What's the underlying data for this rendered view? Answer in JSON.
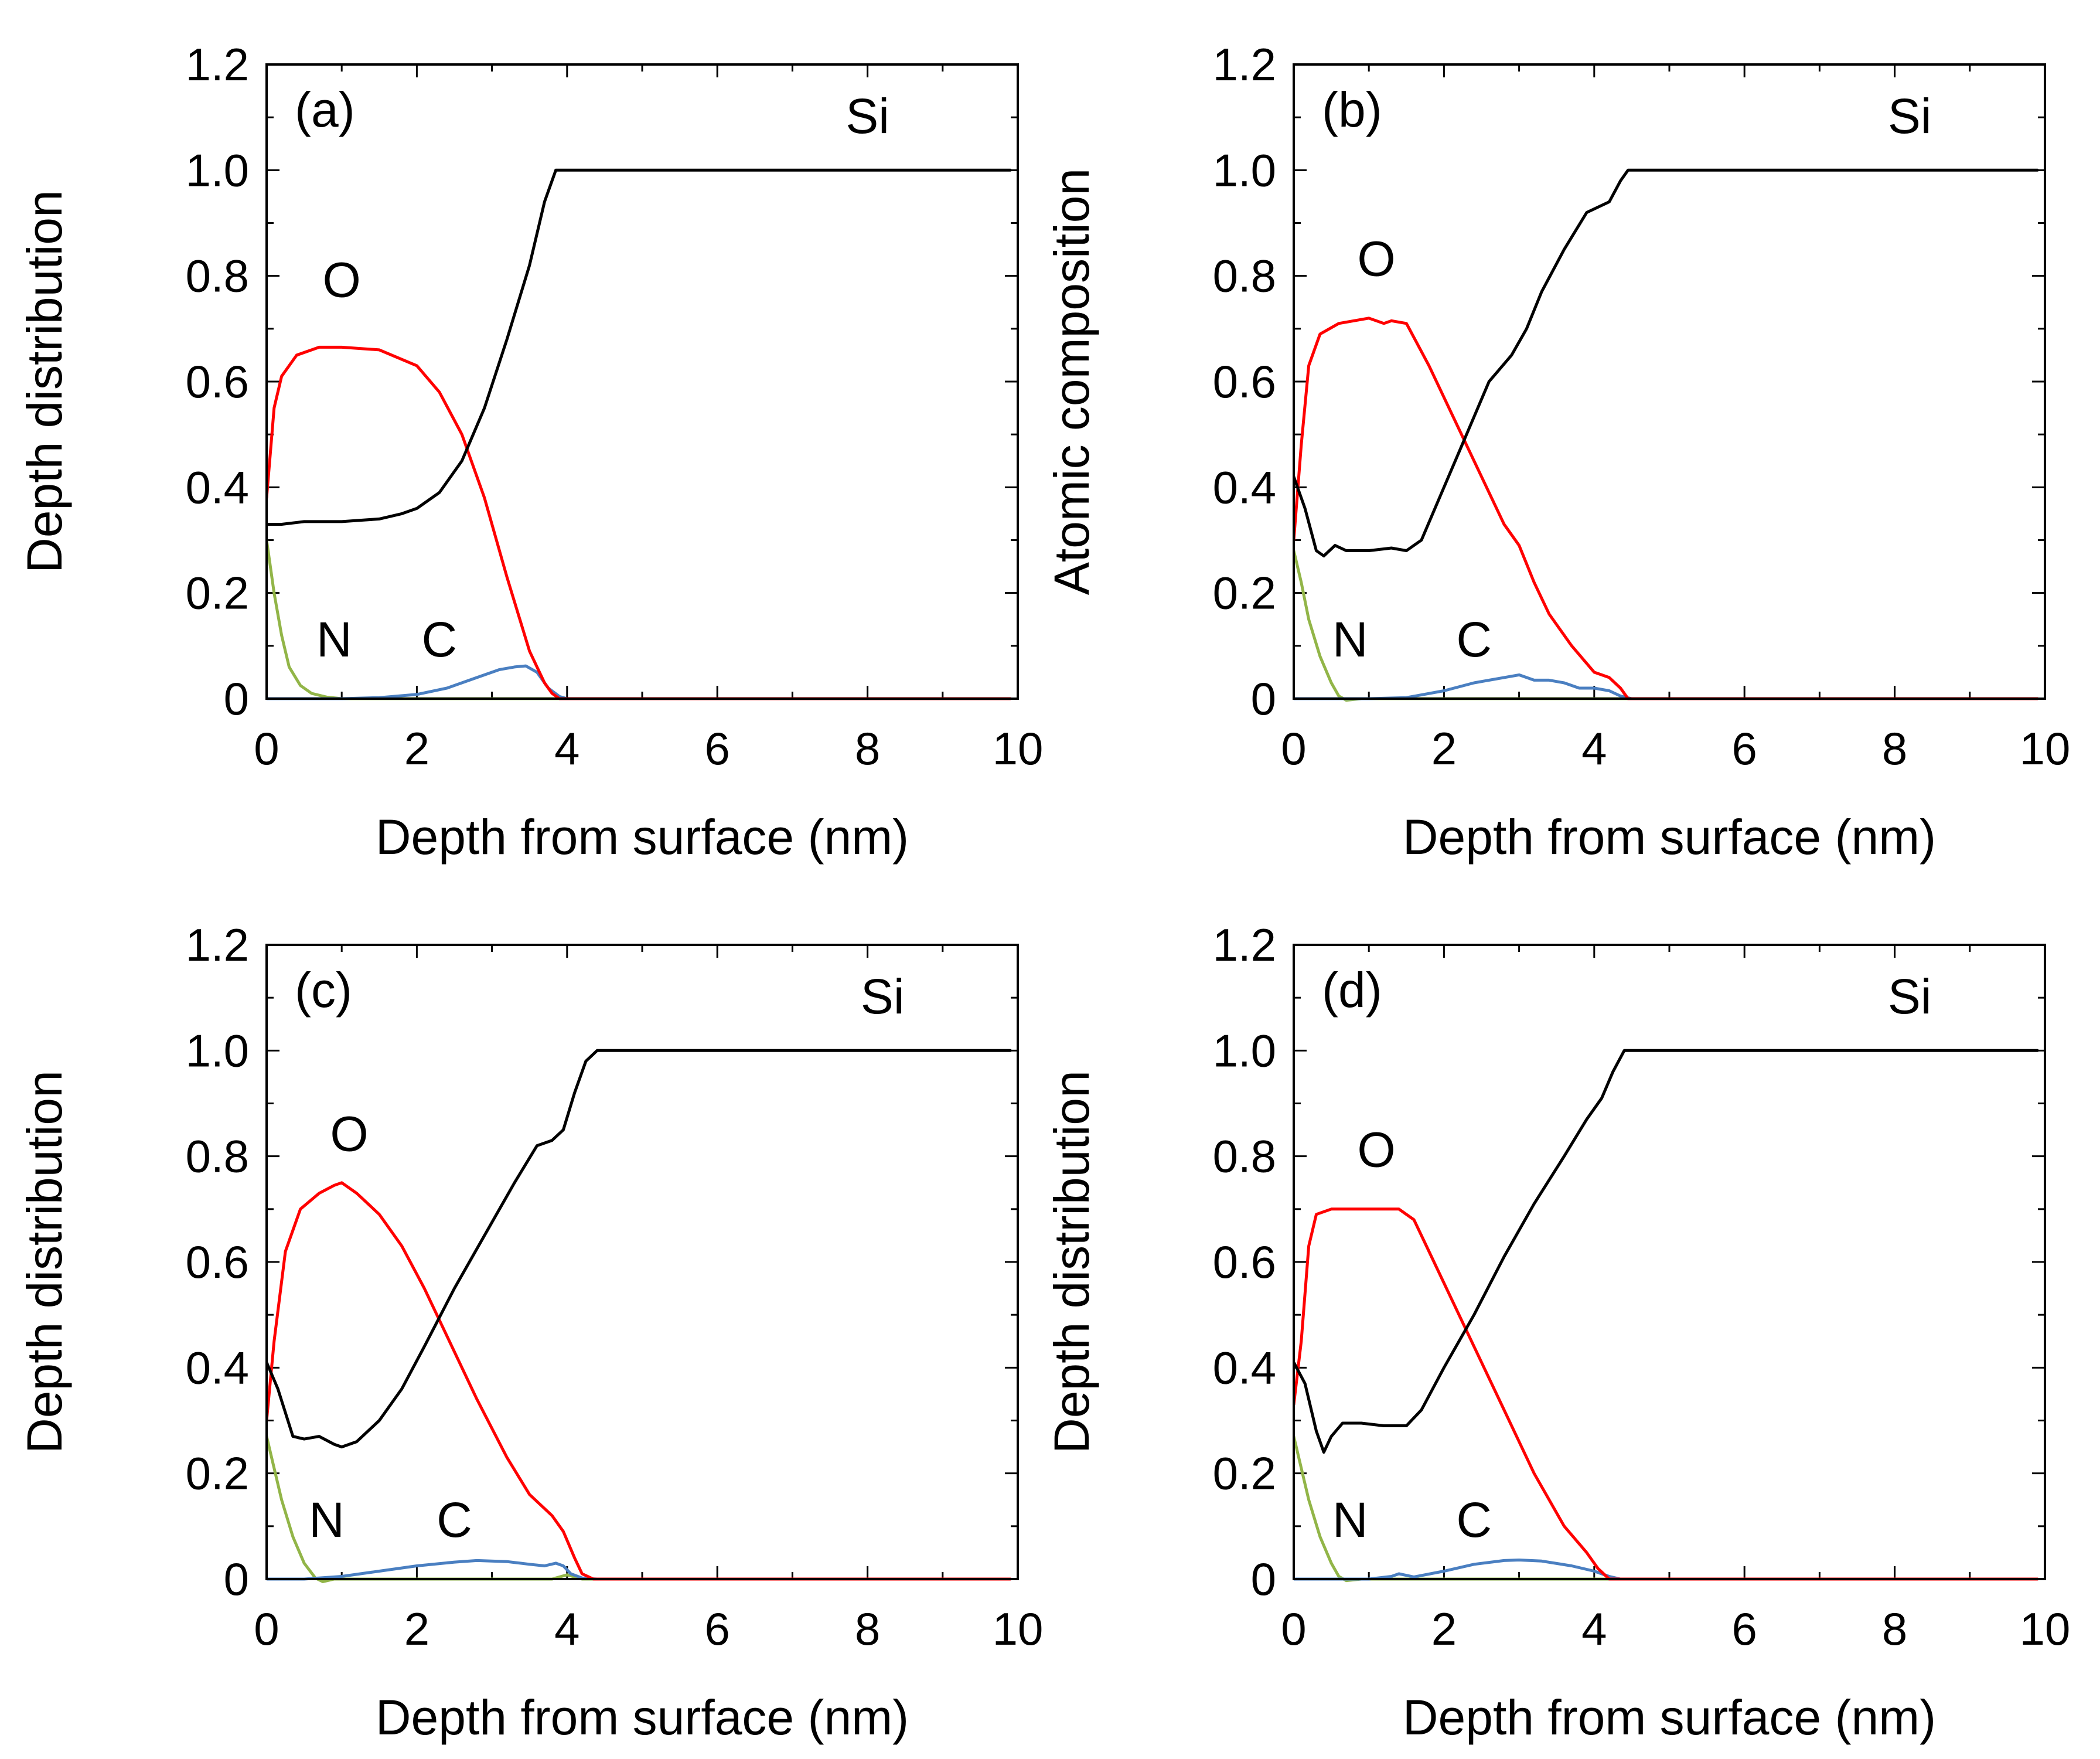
{
  "chart_data": [
    {
      "type": "line",
      "panel_label": "(a)",
      "xlabel": "Depth from surface (nm)",
      "ylabel": "Depth distribution",
      "xlim": [
        0,
        10
      ],
      "ylim": [
        0,
        1.2
      ],
      "xticks": [
        "0",
        "2",
        "4",
        "6",
        "8",
        "10"
      ],
      "yticks": [
        "0",
        "0.2",
        "0.4",
        "0.6",
        "0.8",
        "1.0",
        "1.2"
      ],
      "series": [
        {
          "name": "Si",
          "color": "#000000",
          "label_pos": [
            8.0,
            1.07
          ],
          "x": [
            0,
            0.2,
            0.5,
            1.0,
            1.5,
            1.8,
            2.0,
            2.3,
            2.6,
            2.9,
            3.2,
            3.5,
            3.7,
            3.85,
            4.0,
            6.0,
            8.0,
            9.9
          ],
          "y": [
            0.33,
            0.33,
            0.335,
            0.335,
            0.34,
            0.35,
            0.36,
            0.39,
            0.45,
            0.55,
            0.68,
            0.82,
            0.94,
            1.0,
            1.0,
            1.0,
            1.0,
            1.0
          ]
        },
        {
          "name": "O",
          "color": "#ff0000",
          "label_pos": [
            1.0,
            0.76
          ],
          "x": [
            0,
            0.1,
            0.2,
            0.4,
            0.7,
            1.0,
            1.5,
            2.0,
            2.3,
            2.6,
            2.9,
            3.2,
            3.5,
            3.7,
            3.8,
            3.9,
            4.0,
            6.0,
            8.0,
            9.9
          ],
          "y": [
            0.38,
            0.55,
            0.61,
            0.65,
            0.665,
            0.665,
            0.66,
            0.63,
            0.58,
            0.5,
            0.38,
            0.23,
            0.09,
            0.03,
            0.01,
            0.0,
            0.0,
            0.0,
            0.0,
            0.0
          ]
        },
        {
          "name": "N",
          "color": "#92b548",
          "label_pos": [
            0.9,
            0.08
          ],
          "x": [
            0,
            0.1,
            0.2,
            0.3,
            0.45,
            0.6,
            0.8,
            1.0,
            1.2,
            2.0,
            4.0,
            6.0,
            8.0,
            9.9
          ],
          "y": [
            0.3,
            0.2,
            0.12,
            0.06,
            0.025,
            0.01,
            0.003,
            0.0,
            0.0,
            0.0,
            0.0,
            0.0,
            0.0,
            0.0
          ]
        },
        {
          "name": "C",
          "color": "#4a7fc1",
          "label_pos": [
            2.3,
            0.08
          ],
          "x": [
            0,
            0.5,
            1.0,
            1.5,
            2.0,
            2.4,
            2.8,
            3.1,
            3.3,
            3.45,
            3.6,
            3.75,
            3.9,
            4.0,
            6.0,
            8.0,
            9.9
          ],
          "y": [
            0.0,
            0.0,
            0.0,
            0.002,
            0.008,
            0.02,
            0.04,
            0.055,
            0.06,
            0.062,
            0.05,
            0.02,
            0.004,
            0.0,
            0.0,
            0.0,
            0.0
          ]
        }
      ]
    },
    {
      "type": "line",
      "panel_label": "(b)",
      "xlabel": "Depth from surface (nm)",
      "ylabel": "Atomic composition",
      "xlim": [
        0,
        10
      ],
      "ylim": [
        0,
        1.2
      ],
      "xticks": [
        "0",
        "2",
        "4",
        "6",
        "8",
        "10"
      ],
      "yticks": [
        "0",
        "0.2",
        "0.4",
        "0.6",
        "0.8",
        "1.0",
        "1.2"
      ],
      "series": [
        {
          "name": "Si",
          "color": "#000000",
          "label_pos": [
            8.2,
            1.07
          ],
          "x": [
            0,
            0.15,
            0.3,
            0.4,
            0.55,
            0.7,
            1.0,
            1.3,
            1.5,
            1.7,
            2.0,
            2.3,
            2.6,
            2.9,
            3.1,
            3.3,
            3.6,
            3.9,
            4.2,
            4.35,
            4.45,
            4.6,
            6.0,
            8.0,
            9.9
          ],
          "y": [
            0.42,
            0.36,
            0.28,
            0.27,
            0.29,
            0.28,
            0.28,
            0.285,
            0.28,
            0.3,
            0.4,
            0.5,
            0.6,
            0.65,
            0.7,
            0.77,
            0.85,
            0.92,
            0.94,
            0.98,
            1.0,
            1.0,
            1.0,
            1.0,
            1.0
          ]
        },
        {
          "name": "O",
          "color": "#ff0000",
          "label_pos": [
            1.1,
            0.8
          ],
          "x": [
            0,
            0.1,
            0.2,
            0.35,
            0.6,
            1.0,
            1.2,
            1.3,
            1.5,
            1.8,
            2.1,
            2.4,
            2.6,
            2.8,
            3.0,
            3.2,
            3.4,
            3.7,
            4.0,
            4.2,
            4.35,
            4.45,
            4.6,
            6.0,
            8.0,
            9.9
          ],
          "y": [
            0.3,
            0.48,
            0.63,
            0.69,
            0.71,
            0.72,
            0.71,
            0.715,
            0.71,
            0.63,
            0.54,
            0.45,
            0.39,
            0.33,
            0.29,
            0.22,
            0.16,
            0.1,
            0.05,
            0.04,
            0.02,
            0.0,
            0.0,
            0.0,
            0.0,
            0.0
          ]
        },
        {
          "name": "N",
          "color": "#92b548",
          "label_pos": [
            0.75,
            0.08
          ],
          "x": [
            0,
            0.1,
            0.2,
            0.35,
            0.5,
            0.6,
            0.7,
            0.9,
            1.5,
            2.0,
            4.0,
            6.0,
            8.0,
            9.9
          ],
          "y": [
            0.28,
            0.22,
            0.15,
            0.08,
            0.03,
            0.005,
            -0.003,
            0.0,
            0.0,
            0.0,
            0.0,
            0.0,
            0.0,
            0.0
          ]
        },
        {
          "name": "C",
          "color": "#4a7fc1",
          "label_pos": [
            2.4,
            0.08
          ],
          "x": [
            0,
            1.0,
            1.5,
            2.0,
            2.4,
            2.8,
            3.0,
            3.2,
            3.4,
            3.6,
            3.8,
            4.0,
            4.2,
            4.35,
            4.5,
            6.0,
            8.0,
            9.9
          ],
          "y": [
            0.0,
            0.0,
            0.002,
            0.015,
            0.03,
            0.04,
            0.045,
            0.035,
            0.035,
            0.03,
            0.02,
            0.02,
            0.015,
            0.005,
            0.0,
            0.0,
            0.0,
            0.0
          ]
        }
      ]
    },
    {
      "type": "line",
      "panel_label": "(c)",
      "xlabel": "Depth from surface (nm)",
      "ylabel": "Depth distribution",
      "xlim": [
        0,
        10
      ],
      "ylim": [
        0,
        1.2
      ],
      "xticks": [
        "0",
        "2",
        "4",
        "6",
        "8",
        "10"
      ],
      "yticks": [
        "0",
        "0.2",
        "0.4",
        "0.6",
        "0.8",
        "1.0",
        "1.2"
      ],
      "series": [
        {
          "name": "Si",
          "color": "#000000",
          "label_pos": [
            8.2,
            1.07
          ],
          "x": [
            0,
            0.15,
            0.35,
            0.5,
            0.7,
            0.9,
            1.0,
            1.2,
            1.5,
            1.8,
            2.1,
            2.5,
            2.9,
            3.3,
            3.6,
            3.8,
            3.95,
            4.1,
            4.25,
            4.4,
            4.6,
            6.0,
            8.0,
            9.9
          ],
          "y": [
            0.41,
            0.36,
            0.27,
            0.265,
            0.27,
            0.255,
            0.25,
            0.26,
            0.3,
            0.36,
            0.44,
            0.55,
            0.65,
            0.75,
            0.82,
            0.83,
            0.85,
            0.92,
            0.98,
            1.0,
            1.0,
            1.0,
            1.0,
            1.0
          ]
        },
        {
          "name": "O",
          "color": "#ff0000",
          "label_pos": [
            1.1,
            0.81
          ],
          "x": [
            0,
            0.1,
            0.25,
            0.45,
            0.7,
            0.9,
            1.0,
            1.2,
            1.5,
            1.8,
            2.1,
            2.4,
            2.8,
            3.2,
            3.5,
            3.8,
            3.95,
            4.1,
            4.2,
            4.35,
            4.5,
            6.0,
            8.0,
            9.9
          ],
          "y": [
            0.3,
            0.45,
            0.62,
            0.7,
            0.73,
            0.745,
            0.75,
            0.73,
            0.69,
            0.63,
            0.55,
            0.46,
            0.34,
            0.23,
            0.16,
            0.12,
            0.09,
            0.04,
            0.01,
            0.0,
            0.0,
            0.0,
            0.0,
            0.0
          ]
        },
        {
          "name": "N",
          "color": "#92b548",
          "label_pos": [
            0.8,
            0.08
          ],
          "x": [
            0,
            0.1,
            0.2,
            0.35,
            0.5,
            0.65,
            0.75,
            0.9,
            1.5,
            2.0,
            3.8,
            4.0,
            4.2,
            6.0,
            8.0,
            9.9
          ],
          "y": [
            0.27,
            0.21,
            0.15,
            0.08,
            0.03,
            0.002,
            -0.005,
            0.0,
            0.0,
            0.0,
            0.0,
            0.008,
            0.0,
            0.0,
            0.0,
            0.0
          ]
        },
        {
          "name": "C",
          "color": "#4a7fc1",
          "label_pos": [
            2.5,
            0.08
          ],
          "x": [
            0,
            0.5,
            1.0,
            1.5,
            2.0,
            2.5,
            2.8,
            3.2,
            3.5,
            3.7,
            3.85,
            3.95,
            4.05,
            4.2,
            4.4,
            6.0,
            8.0,
            9.9
          ],
          "y": [
            0.0,
            0.0,
            0.005,
            0.015,
            0.025,
            0.032,
            0.035,
            0.033,
            0.028,
            0.025,
            0.03,
            0.025,
            0.01,
            0.002,
            0.0,
            0.0,
            0.0,
            0.0
          ]
        }
      ]
    },
    {
      "type": "line",
      "panel_label": "(d)",
      "xlabel": "Depth from surface (nm)",
      "ylabel": "Depth distribution",
      "xlim": [
        0,
        10
      ],
      "ylim": [
        0,
        1.2
      ],
      "xticks": [
        "0",
        "2",
        "4",
        "6",
        "8",
        "10"
      ],
      "yticks": [
        "0",
        "0.2",
        "0.4",
        "0.6",
        "0.8",
        "1.0",
        "1.2"
      ],
      "series": [
        {
          "name": "Si",
          "color": "#000000",
          "label_pos": [
            8.2,
            1.07
          ],
          "x": [
            0,
            0.15,
            0.3,
            0.4,
            0.5,
            0.65,
            0.9,
            1.2,
            1.5,
            1.7,
            2.0,
            2.4,
            2.8,
            3.2,
            3.6,
            3.9,
            4.1,
            4.25,
            4.4,
            4.6,
            6.0,
            8.0,
            9.9
          ],
          "y": [
            0.41,
            0.37,
            0.28,
            0.24,
            0.27,
            0.295,
            0.295,
            0.29,
            0.29,
            0.32,
            0.4,
            0.5,
            0.61,
            0.71,
            0.8,
            0.87,
            0.91,
            0.96,
            1.0,
            1.0,
            1.0,
            1.0,
            1.0
          ]
        },
        {
          "name": "O",
          "color": "#ff0000",
          "label_pos": [
            1.1,
            0.78
          ],
          "x": [
            0,
            0.1,
            0.2,
            0.3,
            0.5,
            1.0,
            1.4,
            1.6,
            1.8,
            2.1,
            2.4,
            2.8,
            3.2,
            3.6,
            3.9,
            4.05,
            4.2,
            4.4,
            6.0,
            8.0,
            9.9
          ],
          "y": [
            0.33,
            0.45,
            0.63,
            0.69,
            0.7,
            0.7,
            0.7,
            0.68,
            0.62,
            0.53,
            0.44,
            0.32,
            0.2,
            0.1,
            0.05,
            0.02,
            0.0,
            0.0,
            0.0,
            0.0,
            0.0
          ]
        },
        {
          "name": "N",
          "color": "#92b548",
          "label_pos": [
            0.75,
            0.08
          ],
          "x": [
            0,
            0.1,
            0.2,
            0.35,
            0.5,
            0.6,
            0.7,
            0.9,
            1.5,
            2.0,
            4.0,
            6.0,
            8.0,
            9.9
          ],
          "y": [
            0.27,
            0.21,
            0.15,
            0.08,
            0.03,
            0.005,
            -0.003,
            0.0,
            0.0,
            0.0,
            0.0,
            0.0,
            0.0,
            0.0
          ]
        },
        {
          "name": "C",
          "color": "#4a7fc1",
          "label_pos": [
            2.4,
            0.08
          ],
          "x": [
            0,
            1.0,
            1.3,
            1.4,
            1.6,
            2.0,
            2.4,
            2.8,
            3.0,
            3.3,
            3.7,
            4.0,
            4.2,
            4.35,
            6.0,
            8.0,
            9.9
          ],
          "y": [
            0.0,
            0.0,
            0.005,
            0.01,
            0.004,
            0.015,
            0.028,
            0.035,
            0.036,
            0.034,
            0.025,
            0.015,
            0.005,
            0.0,
            0.0,
            0.0,
            0.0
          ]
        }
      ]
    }
  ]
}
